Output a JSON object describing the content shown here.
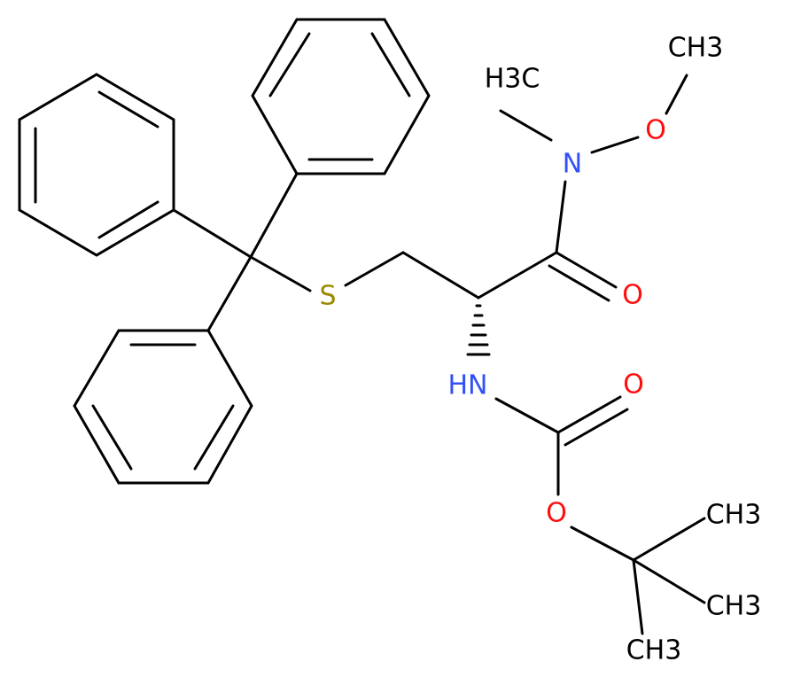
{
  "atoms": [
    {
      "label": "S"
    },
    {
      "label": "O"
    },
    {
      "label": "N"
    },
    {
      "label": "O"
    },
    {
      "label": "CH3"
    },
    {
      "label": "H3C"
    },
    {
      "label": "HN"
    },
    {
      "label": "O"
    },
    {
      "label": "O"
    },
    {
      "label": "CH3"
    },
    {
      "label": "CH3"
    },
    {
      "label": "CH3"
    }
  ]
}
